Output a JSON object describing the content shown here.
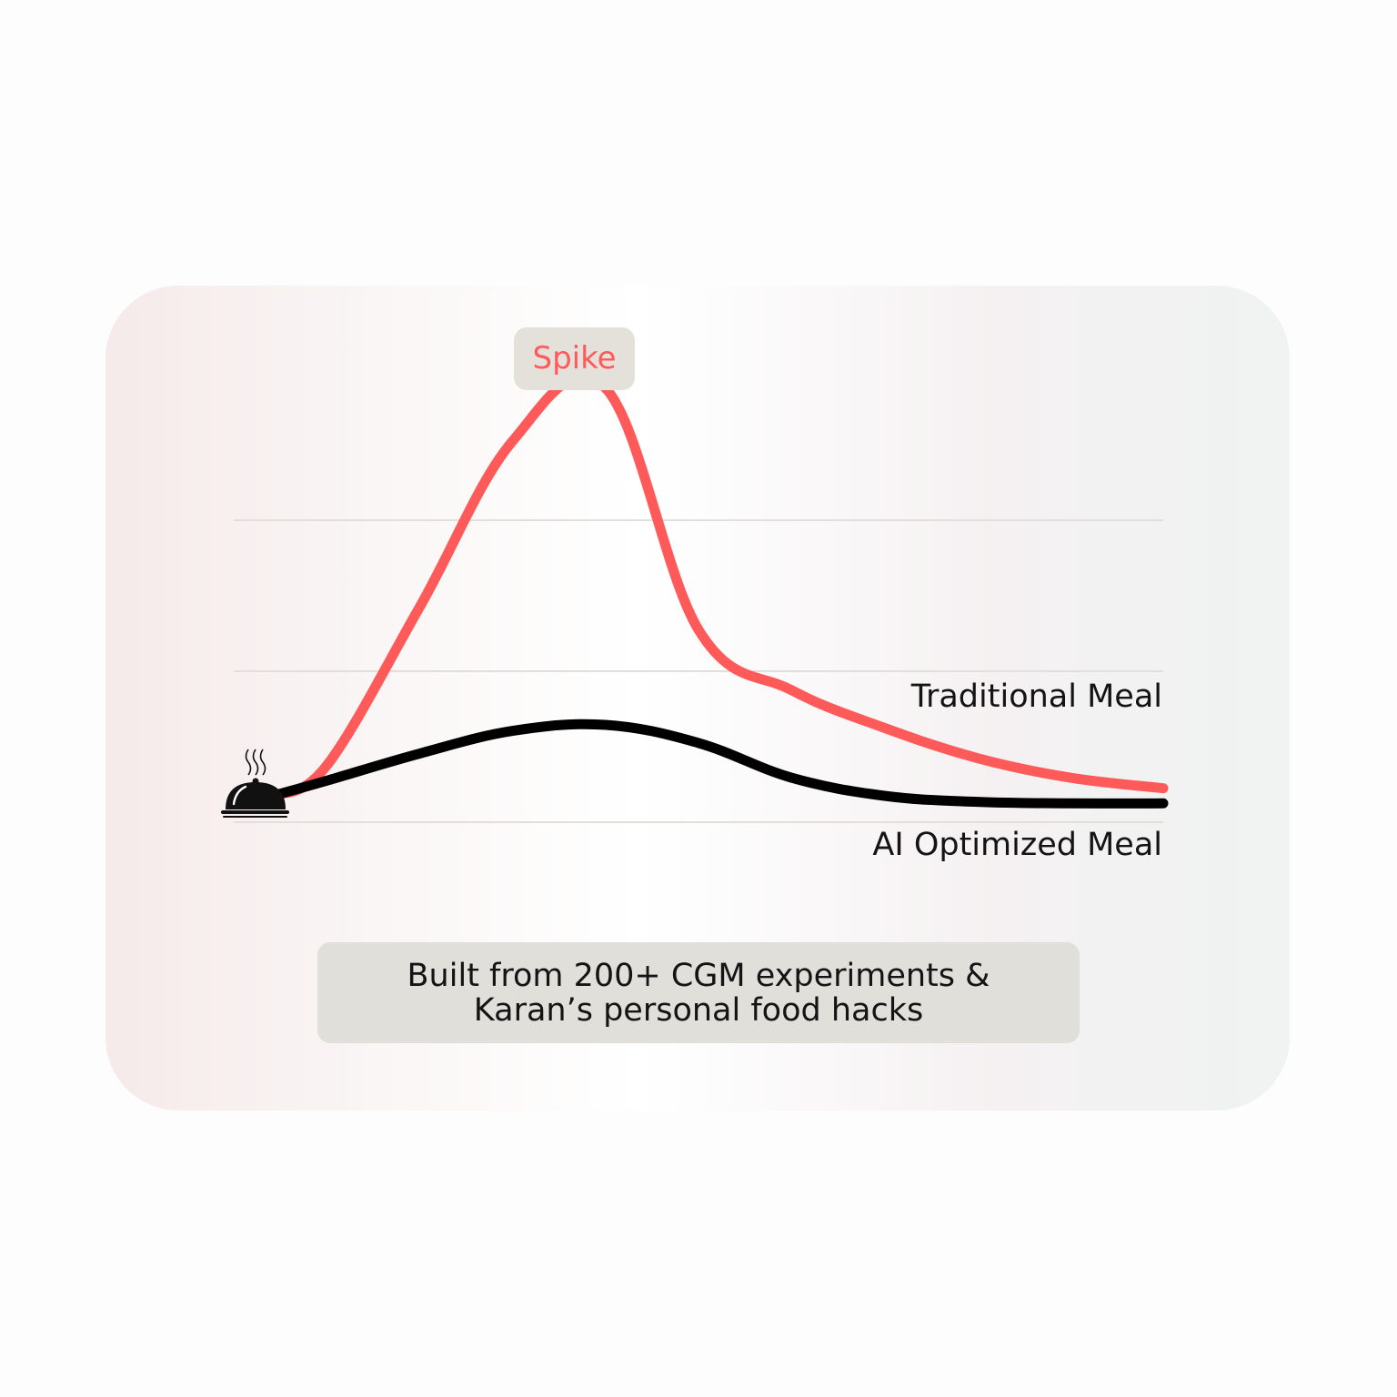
{
  "chart_data": {
    "type": "line",
    "title": "",
    "xlabel": "",
    "ylabel": "",
    "x": [
      0,
      10,
      20,
      30,
      40,
      50,
      60,
      70,
      80,
      90,
      100
    ],
    "ylim": [
      0,
      3
    ],
    "grid": true,
    "gridlines": [
      1,
      2
    ],
    "series": [
      {
        "name": "Traditional Meal",
        "color": "#ff5a5a",
        "values": [
          0.0,
          0.2,
          1.25,
          2.35,
          2.7,
          1.1,
          0.7,
          0.45,
          0.25,
          0.12,
          0.05
        ]
      },
      {
        "name": "AI Optimized Meal",
        "color": "#000000",
        "values": [
          0.0,
          0.1,
          0.28,
          0.43,
          0.47,
          0.35,
          0.12,
          0.0,
          -0.04,
          -0.05,
          -0.05
        ]
      }
    ],
    "annotation": "Spike",
    "start_icon": "serving-cloche-icon"
  },
  "badge": {
    "text": "Spike",
    "color": "#ff5a5a"
  },
  "labels": {
    "traditional": "Traditional Meal",
    "ai": "AI Optimized Meal"
  },
  "caption": {
    "line1": "Built from 200+ CGM experiments &",
    "line2": "Karan’s personal food hacks"
  }
}
